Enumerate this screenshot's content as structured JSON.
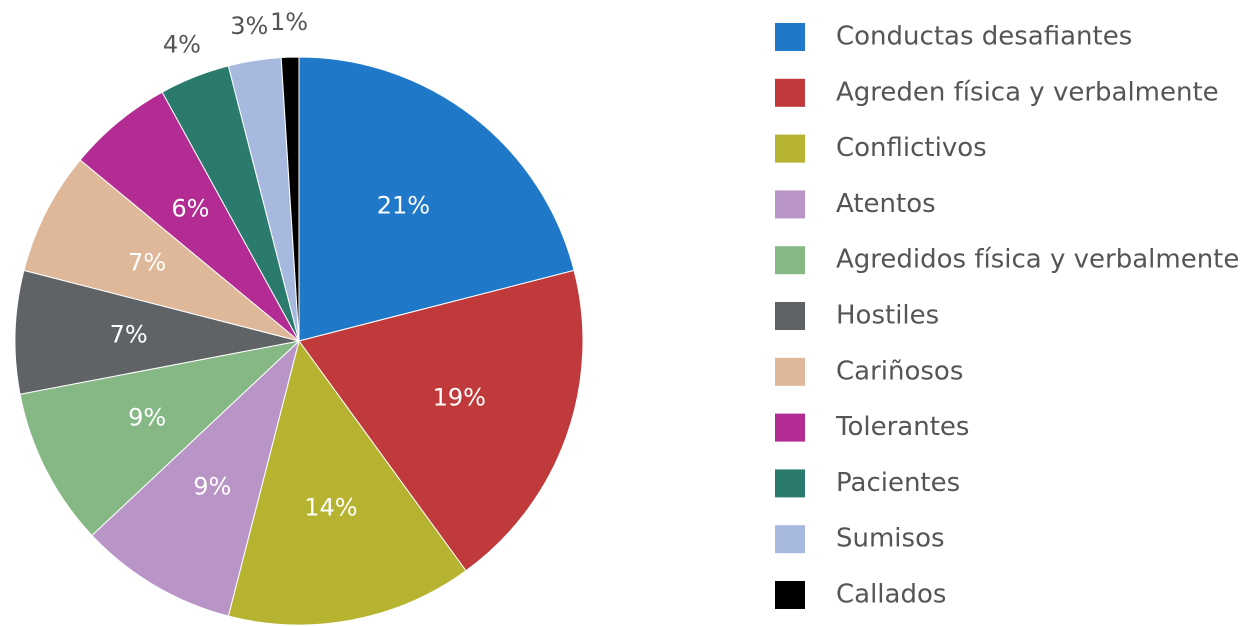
{
  "chart_data": {
    "type": "pie",
    "categories": [
      "Conductas desafiantes",
      "Agreden física y verbalmente",
      "Conflictivos",
      "Atentos",
      "Agredidos física y verbalmente",
      "Hostiles",
      "Cariñosos",
      "Tolerantes",
      "Pacientes",
      "Sumisos",
      "Callados"
    ],
    "values": [
      21,
      19,
      14,
      9,
      9,
      7,
      7,
      6,
      4,
      3,
      1
    ],
    "value_labels": [
      "21%",
      "19%",
      "14%",
      "9%",
      "9%",
      "7%",
      "7%",
      "6%",
      "4%",
      "3%",
      "1%"
    ],
    "colors": [
      "#1f78c8",
      "#c0393b",
      "#b5b330",
      "#b994c6",
      "#86b886",
      "#606366",
      "#dfb899",
      "#b32c93",
      "#2a7b6e",
      "#a8b9e0",
      "#000000"
    ],
    "legend": "right"
  }
}
